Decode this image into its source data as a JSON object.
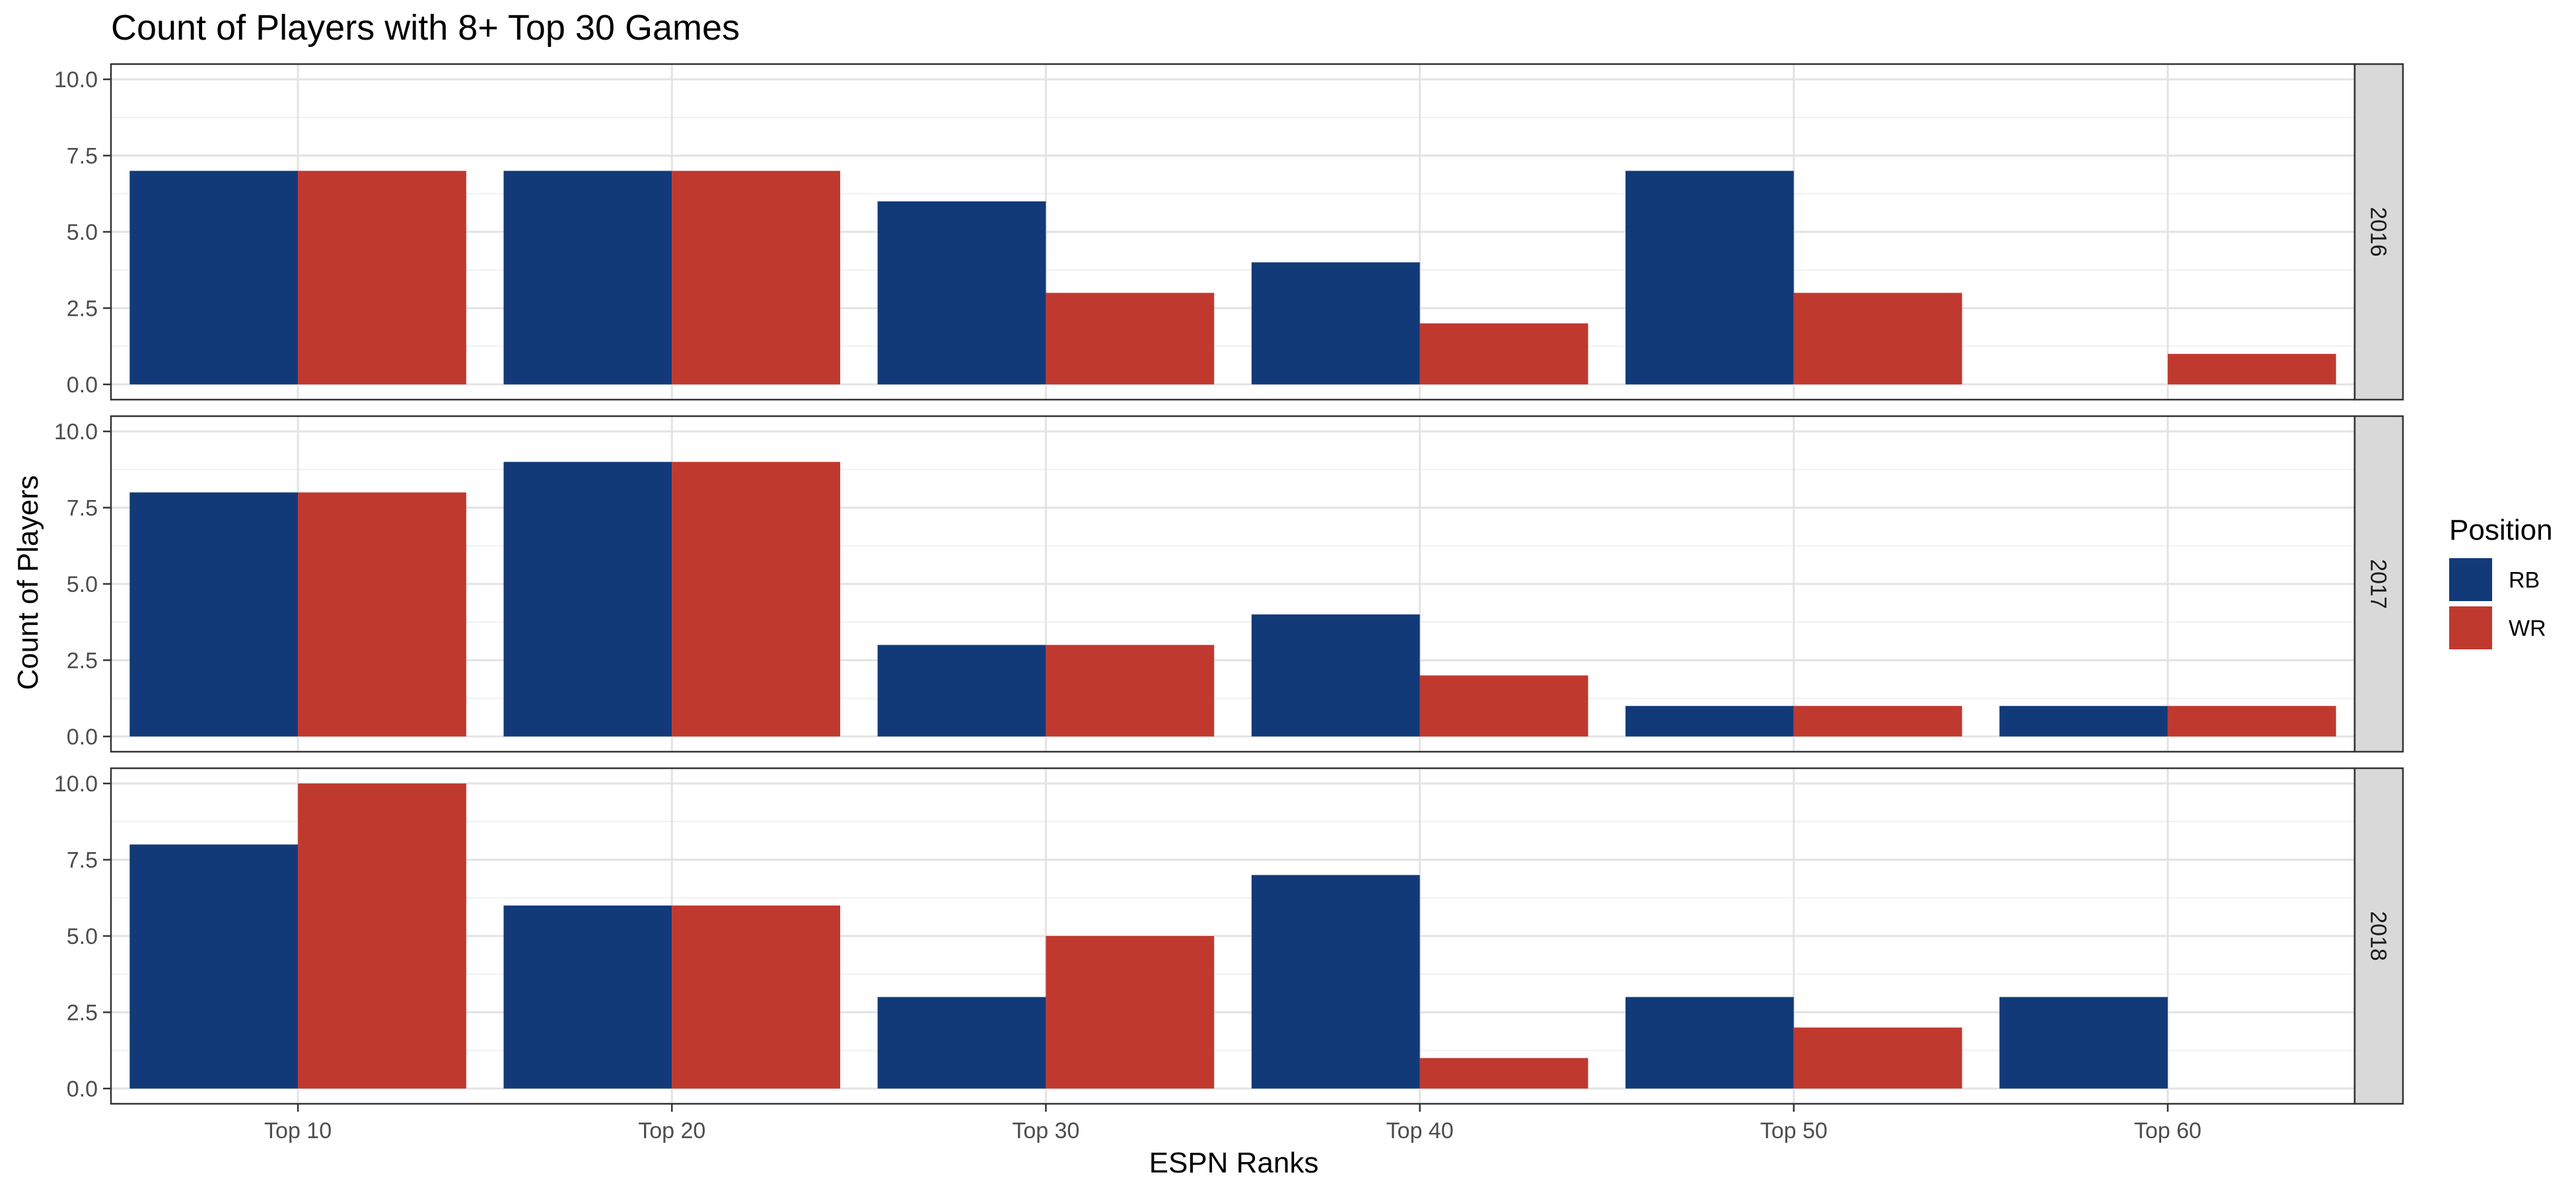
{
  "chart_data": {
    "type": "bar",
    "title": "Count of Players with 8+ Top 30 Games",
    "xlabel": "ESPN Ranks",
    "ylabel": "Count of Players",
    "categories": [
      "Top 10",
      "Top 20",
      "Top 30",
      "Top 40",
      "Top 50",
      "Top 60"
    ],
    "ylim": [
      0,
      10
    ],
    "yticks": [
      "0.0",
      "2.5",
      "5.0",
      "7.5",
      "10.0"
    ],
    "grid": true,
    "legend": {
      "title": "Position",
      "placement": "right",
      "entries": [
        {
          "name": "RB",
          "color": "#123A78"
        },
        {
          "name": "WR",
          "color": "#C0392F"
        }
      ]
    },
    "facets": [
      {
        "label": "2016",
        "series": [
          {
            "name": "RB",
            "values": [
              7,
              7,
              6,
              4,
              7,
              null
            ]
          },
          {
            "name": "WR",
            "values": [
              7,
              7,
              3,
              2,
              3,
              1
            ]
          }
        ]
      },
      {
        "label": "2017",
        "series": [
          {
            "name": "RB",
            "values": [
              8,
              9,
              3,
              4,
              1,
              1
            ]
          },
          {
            "name": "WR",
            "values": [
              8,
              9,
              3,
              2,
              1,
              1
            ]
          }
        ]
      },
      {
        "label": "2018",
        "series": [
          {
            "name": "RB",
            "values": [
              8,
              6,
              3,
              7,
              3,
              3
            ]
          },
          {
            "name": "WR",
            "values": [
              10,
              6,
              5,
              1,
              2,
              null
            ]
          }
        ]
      }
    ]
  }
}
